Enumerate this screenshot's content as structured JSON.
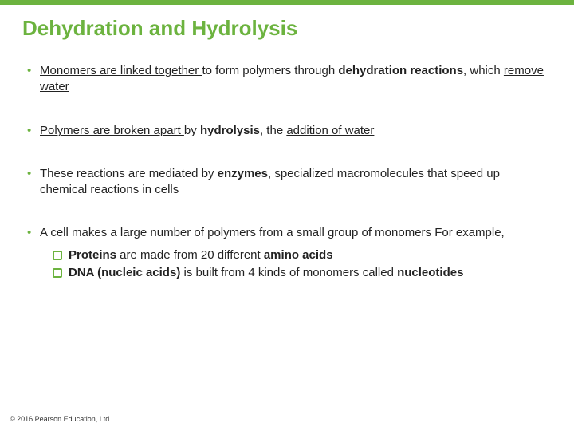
{
  "colors": {
    "accent": "#6cb33f",
    "text": "#222222",
    "bg": "#ffffff"
  },
  "title": "Dehydration and Hydrolysis",
  "bullets": {
    "b1": {
      "seg1": "Monomers are linked together ",
      "seg2": "to form polymers through ",
      "seg3": "dehydration reactions",
      "seg4": ", which ",
      "seg5": "remove water"
    },
    "b2": {
      "seg1": "Polymers are broken apart ",
      "seg2": "by ",
      "seg3": "hydrolysis",
      "seg4": ", the ",
      "seg5": "addition of water"
    },
    "b3": {
      "seg1": "These reactions are mediated by ",
      "seg2": "enzymes",
      "seg3": ", specialized macromolecules that speed up chemical reactions in cells"
    },
    "b4": {
      "seg1": "A cell makes a large number of polymers from a small group of monomers For example,"
    },
    "sub1": {
      "seg1": "Proteins",
      "seg2": " are made from 20 different ",
      "seg3": "amino acids"
    },
    "sub2": {
      "seg1": "DNA (nucleic acids)",
      "seg2": " is built from 4 kinds of monomers called ",
      "seg3": "nucleotides"
    }
  },
  "footer": "© 2016 Pearson Education, Ltd."
}
